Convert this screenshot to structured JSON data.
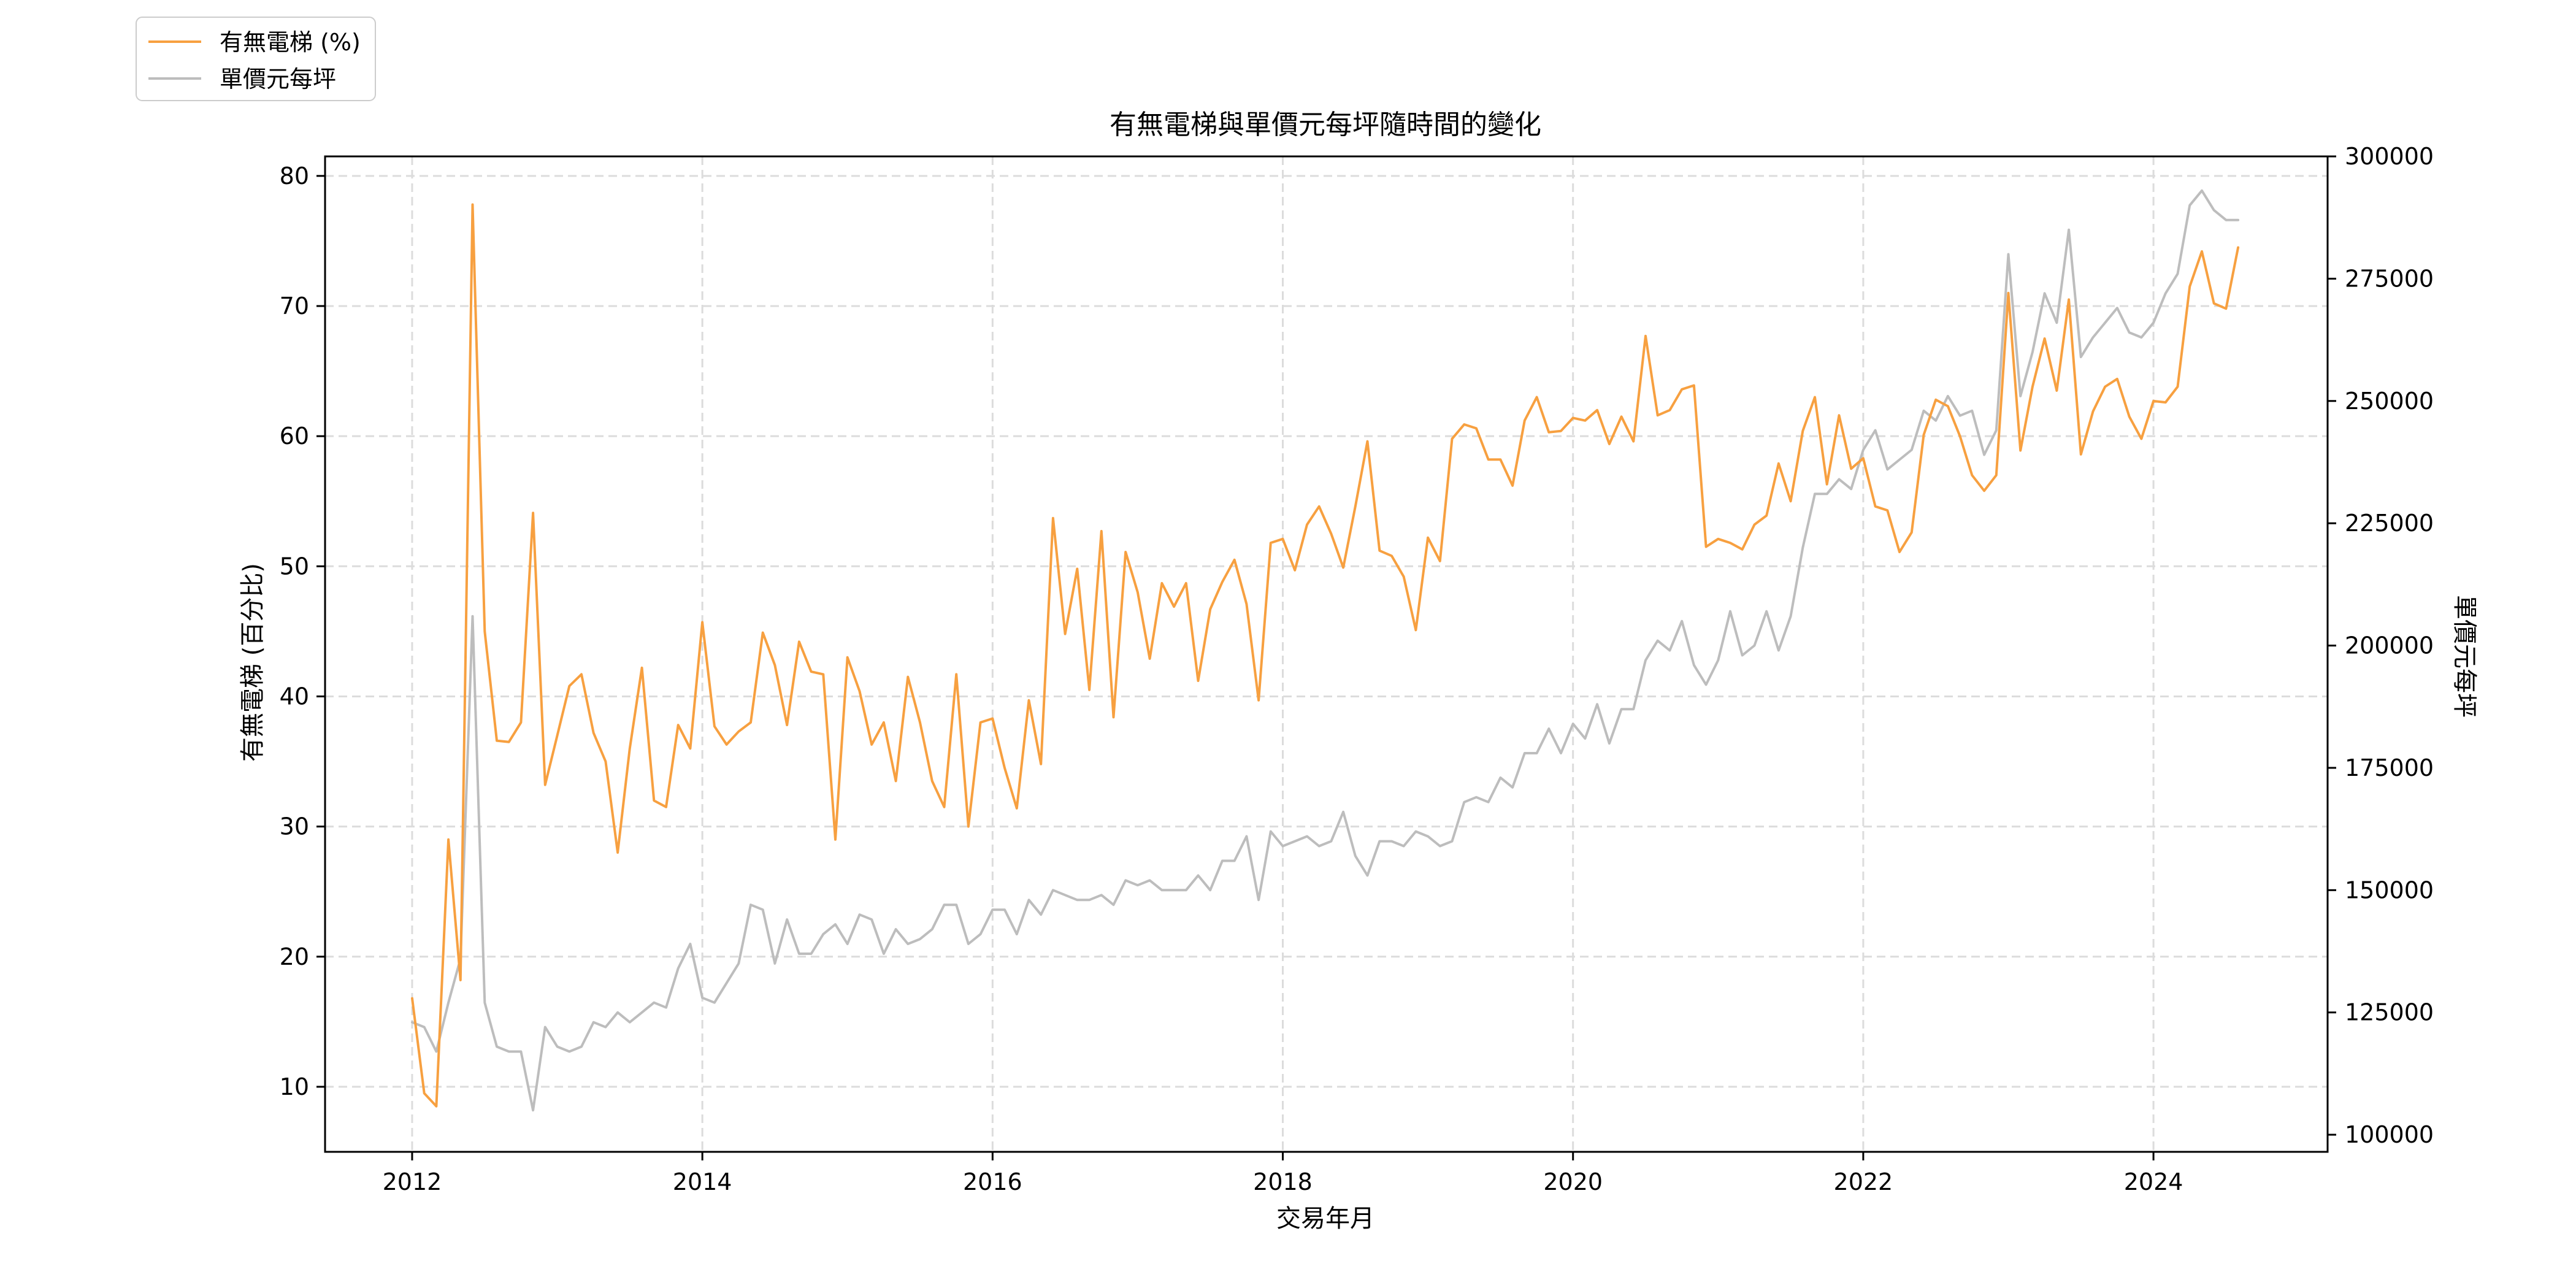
{
  "chart_data": {
    "type": "line",
    "title": "有無電梯與單價元每坪隨時間的變化",
    "xlabel": "交易年月",
    "ylabel_left": "有無電梯 (百分比)",
    "ylabel_right": "單價元每坪",
    "xlim": [
      2011.4,
      2025.2
    ],
    "ylim_left": [
      5,
      81.5
    ],
    "ylim_right": [
      96500,
      300000
    ],
    "x_ticks": [
      2012,
      2014,
      2016,
      2018,
      2020,
      2022,
      2024
    ],
    "y_left_ticks": [
      10,
      20,
      30,
      40,
      50,
      60,
      70,
      80
    ],
    "y_right_ticks": [
      100000,
      125000,
      150000,
      175000,
      200000,
      225000,
      250000,
      275000,
      300000
    ],
    "grid": true,
    "legend_position": "top-left outside",
    "colors": {
      "elevator": "#f7a040",
      "price": "#bdbdbd"
    },
    "series": [
      {
        "name": "有無電梯 (%)",
        "axis": "left",
        "x": [
          "2012-01",
          "2012-02",
          "2012-03",
          "2012-04",
          "2012-05",
          "2012-06",
          "2012-07",
          "2012-08",
          "2012-09",
          "2012-10",
          "2012-11",
          "2012-12",
          "2013-01",
          "2013-02",
          "2013-03",
          "2013-04",
          "2013-05",
          "2013-06",
          "2013-07",
          "2013-08",
          "2013-09",
          "2013-10",
          "2013-11",
          "2013-12",
          "2014-01",
          "2014-02",
          "2014-03",
          "2014-04",
          "2014-05",
          "2014-06",
          "2014-07",
          "2014-08",
          "2014-09",
          "2014-10",
          "2014-11",
          "2014-12",
          "2015-01",
          "2015-02",
          "2015-03",
          "2015-04",
          "2015-05",
          "2015-06",
          "2015-07",
          "2015-08",
          "2015-09",
          "2015-10",
          "2015-11",
          "2015-12",
          "2016-01",
          "2016-02",
          "2016-03",
          "2016-04",
          "2016-05",
          "2016-06",
          "2016-07",
          "2016-08",
          "2016-09",
          "2016-10",
          "2016-11",
          "2016-12",
          "2017-01",
          "2017-02",
          "2017-03",
          "2017-04",
          "2017-05",
          "2017-06",
          "2017-07",
          "2017-08",
          "2017-09",
          "2017-10",
          "2017-11",
          "2017-12",
          "2018-01",
          "2018-02",
          "2018-03",
          "2018-04",
          "2018-05",
          "2018-06",
          "2018-07",
          "2018-08",
          "2018-09",
          "2018-10",
          "2018-11",
          "2018-12",
          "2019-01",
          "2019-02",
          "2019-03",
          "2019-04",
          "2019-05",
          "2019-06",
          "2019-07",
          "2019-08",
          "2019-09",
          "2019-10",
          "2019-11",
          "2019-12",
          "2020-01",
          "2020-02",
          "2020-03",
          "2020-04",
          "2020-05",
          "2020-06",
          "2020-07",
          "2020-08",
          "2020-09",
          "2020-10",
          "2020-11",
          "2020-12",
          "2021-01",
          "2021-02",
          "2021-03",
          "2021-04",
          "2021-05",
          "2021-06",
          "2021-07",
          "2021-08",
          "2021-09",
          "2021-10",
          "2021-11",
          "2021-12",
          "2022-01",
          "2022-02",
          "2022-03",
          "2022-04",
          "2022-05",
          "2022-06",
          "2022-07",
          "2022-08",
          "2022-09",
          "2022-10",
          "2022-11",
          "2022-12",
          "2023-01",
          "2023-02",
          "2023-03",
          "2023-04",
          "2023-05",
          "2023-06",
          "2023-07",
          "2023-08",
          "2023-09",
          "2023-10",
          "2023-11",
          "2023-12",
          "2024-01",
          "2024-02",
          "2024-03",
          "2024-04",
          "2024-05",
          "2024-06",
          "2024-07",
          "2024-08"
        ],
        "values": [
          16.8,
          9.5,
          8.5,
          29.0,
          18.2,
          77.8,
          45.0,
          36.6,
          36.5,
          38.0,
          54.1,
          33.2,
          37.0,
          40.8,
          41.7,
          37.2,
          35.0,
          28.0,
          36.0,
          42.2,
          32.0,
          31.5,
          37.8,
          36.0,
          45.7,
          37.7,
          36.3,
          37.3,
          38.0,
          44.9,
          42.4,
          37.8,
          44.2,
          41.9,
          41.7,
          29.0,
          43.0,
          40.4,
          36.3,
          38.0,
          33.5,
          41.5,
          38.0,
          33.5,
          31.5,
          41.7,
          30.0,
          38.0,
          38.3,
          34.5,
          31.4,
          39.7,
          34.8,
          53.7,
          44.8,
          49.8,
          40.5,
          52.7,
          38.4,
          51.1,
          48.0,
          42.9,
          48.7,
          46.9,
          48.7,
          41.2,
          46.7,
          48.8,
          50.5,
          47.1,
          39.7,
          51.8,
          52.1,
          49.7,
          53.2,
          54.6,
          52.5,
          49.9,
          54.6,
          59.6,
          51.2,
          50.8,
          49.2,
          45.1,
          52.2,
          50.4,
          59.8,
          60.9,
          60.6,
          58.2,
          58.2,
          56.2,
          61.2,
          63.0,
          60.3,
          60.4,
          61.4,
          61.2,
          62.0,
          59.4,
          61.5,
          59.6,
          67.7,
          61.6,
          62.0,
          63.6,
          63.9,
          51.5,
          52.1,
          51.8,
          51.3,
          53.2,
          53.9,
          57.9,
          55.0,
          60.4,
          63.0,
          56.3,
          61.6,
          57.5,
          58.3,
          54.6,
          54.3,
          51.1,
          52.6,
          60.1,
          62.8,
          62.3,
          60.0,
          57.0,
          55.8,
          57.0,
          71.0,
          58.9,
          63.8,
          67.5,
          63.5,
          70.5,
          58.6,
          61.9,
          63.8,
          64.4,
          61.5,
          59.8,
          62.7,
          62.6,
          63.8,
          71.5,
          74.2,
          70.2,
          69.8,
          74.5
        ]
      },
      {
        "name": "單價元每坪",
        "axis": "right",
        "x": [
          "2012-01",
          "2012-02",
          "2012-03",
          "2012-04",
          "2012-05",
          "2012-06",
          "2012-07",
          "2012-08",
          "2012-09",
          "2012-10",
          "2012-11",
          "2012-12",
          "2013-01",
          "2013-02",
          "2013-03",
          "2013-04",
          "2013-05",
          "2013-06",
          "2013-07",
          "2013-08",
          "2013-09",
          "2013-10",
          "2013-11",
          "2013-12",
          "2014-01",
          "2014-02",
          "2014-03",
          "2014-04",
          "2014-05",
          "2014-06",
          "2014-07",
          "2014-08",
          "2014-09",
          "2014-10",
          "2014-11",
          "2014-12",
          "2015-01",
          "2015-02",
          "2015-03",
          "2015-04",
          "2015-05",
          "2015-06",
          "2015-07",
          "2015-08",
          "2015-09",
          "2015-10",
          "2015-11",
          "2015-12",
          "2016-01",
          "2016-02",
          "2016-03",
          "2016-04",
          "2016-05",
          "2016-06",
          "2016-07",
          "2016-08",
          "2016-09",
          "2016-10",
          "2016-11",
          "2016-12",
          "2017-01",
          "2017-02",
          "2017-03",
          "2017-04",
          "2017-05",
          "2017-06",
          "2017-07",
          "2017-08",
          "2017-09",
          "2017-10",
          "2017-11",
          "2017-12",
          "2018-01",
          "2018-02",
          "2018-03",
          "2018-04",
          "2018-05",
          "2018-06",
          "2018-07",
          "2018-08",
          "2018-09",
          "2018-10",
          "2018-11",
          "2018-12",
          "2019-01",
          "2019-02",
          "2019-03",
          "2019-04",
          "2019-05",
          "2019-06",
          "2019-07",
          "2019-08",
          "2019-09",
          "2019-10",
          "2019-11",
          "2019-12",
          "2020-01",
          "2020-02",
          "2020-03",
          "2020-04",
          "2020-05",
          "2020-06",
          "2020-07",
          "2020-08",
          "2020-09",
          "2020-10",
          "2020-11",
          "2020-12",
          "2021-01",
          "2021-02",
          "2021-03",
          "2021-04",
          "2021-05",
          "2021-06",
          "2021-07",
          "2021-08",
          "2021-09",
          "2021-10",
          "2021-11",
          "2021-12",
          "2022-01",
          "2022-02",
          "2022-03",
          "2022-04",
          "2022-05",
          "2022-06",
          "2022-07",
          "2022-08",
          "2022-09",
          "2022-10",
          "2022-11",
          "2022-12",
          "2023-01",
          "2023-02",
          "2023-03",
          "2023-04",
          "2023-05",
          "2023-06",
          "2023-07",
          "2023-08",
          "2023-09",
          "2023-10",
          "2023-11",
          "2023-12",
          "2024-01",
          "2024-02",
          "2024-03",
          "2024-04",
          "2024-05",
          "2024-06",
          "2024-07",
          "2024-08"
        ],
        "values": [
          123000,
          122000,
          117000,
          127000,
          136000,
          206000,
          127000,
          118000,
          117000,
          117000,
          105000,
          122000,
          118000,
          117000,
          118000,
          123000,
          122000,
          125000,
          123000,
          125000,
          127000,
          126000,
          134000,
          139000,
          128000,
          127000,
          131000,
          135000,
          147000,
          146000,
          135000,
          144000,
          137000,
          137000,
          141000,
          143000,
          139000,
          145000,
          144000,
          137000,
          142000,
          139000,
          140000,
          142000,
          147000,
          147000,
          139000,
          141000,
          146000,
          146000,
          141000,
          148000,
          145000,
          150000,
          149000,
          148000,
          148000,
          149000,
          147000,
          152000,
          151000,
          152000,
          150000,
          150000,
          150000,
          153000,
          150000,
          156000,
          156000,
          161000,
          148000,
          162000,
          159000,
          160000,
          161000,
          159000,
          160000,
          166000,
          157000,
          153000,
          160000,
          160000,
          159000,
          162000,
          161000,
          159000,
          160000,
          168000,
          169000,
          168000,
          173000,
          171000,
          178000,
          178000,
          183000,
          178000,
          184000,
          181000,
          188000,
          180000,
          187000,
          187000,
          197000,
          201000,
          199000,
          205000,
          196000,
          192000,
          197000,
          207000,
          198000,
          200000,
          207000,
          199000,
          206000,
          220000,
          231000,
          231000,
          234000,
          232000,
          240000,
          244000,
          236000,
          238000,
          240000,
          248000,
          246000,
          251000,
          247000,
          248000,
          239000,
          244000,
          280000,
          251000,
          260000,
          272000,
          266000,
          285000,
          259000,
          263000,
          266000,
          269000,
          264000,
          263000,
          266000,
          272000,
          276000,
          290000,
          293000,
          289000,
          287000,
          287000
        ]
      }
    ]
  }
}
